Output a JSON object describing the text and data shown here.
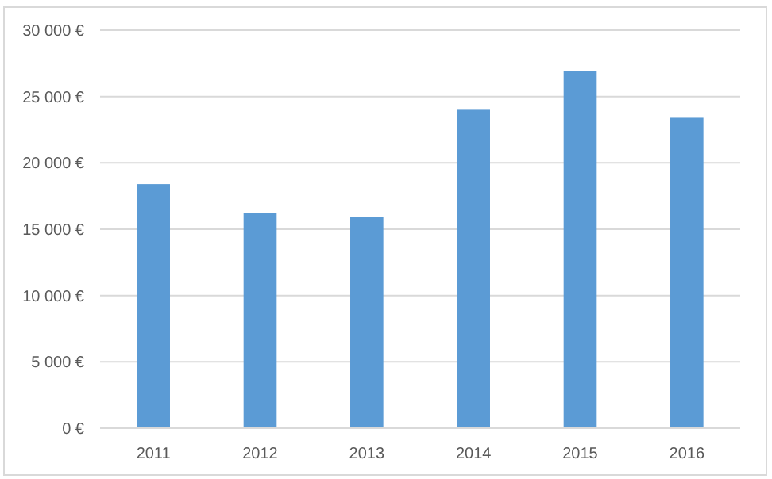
{
  "chart_data": {
    "type": "bar",
    "categories": [
      "2011",
      "2012",
      "2013",
      "2014",
      "2015",
      "2016"
    ],
    "values": [
      18400,
      16200,
      15900,
      24000,
      26900,
      23400
    ],
    "color": "#5b9bd5",
    "ylim": [
      0,
      30000
    ],
    "yticks": [
      {
        "value": 0,
        "label": "0 €"
      },
      {
        "value": 5000,
        "label": "5 000 €"
      },
      {
        "value": 10000,
        "label": "10 000 €"
      },
      {
        "value": 15000,
        "label": "15 000 €"
      },
      {
        "value": 20000,
        "label": "20 000 €"
      },
      {
        "value": 25000,
        "label": "25 000 €"
      },
      {
        "value": 30000,
        "label": "30 000 €"
      }
    ],
    "grid": "y"
  }
}
